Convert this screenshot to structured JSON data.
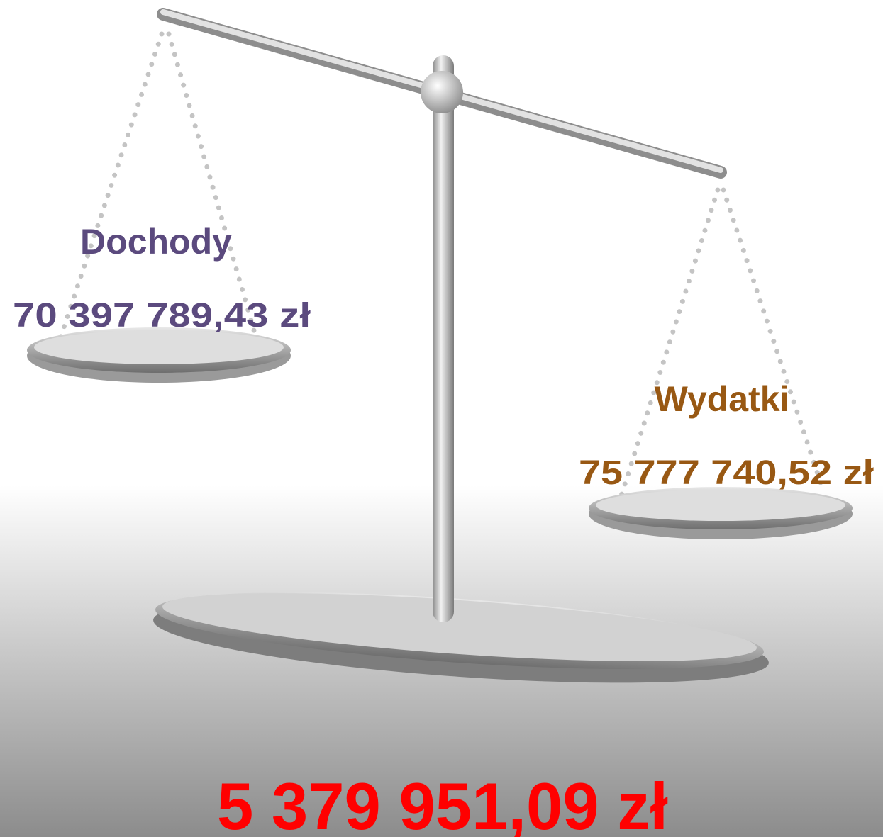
{
  "left": {
    "label": "Dochody",
    "amount": "70 397 789,43 zł"
  },
  "right": {
    "label": "Wydatki",
    "amount": "75 777 740,52 zł"
  },
  "balance": "5 379 951,09 zł"
}
